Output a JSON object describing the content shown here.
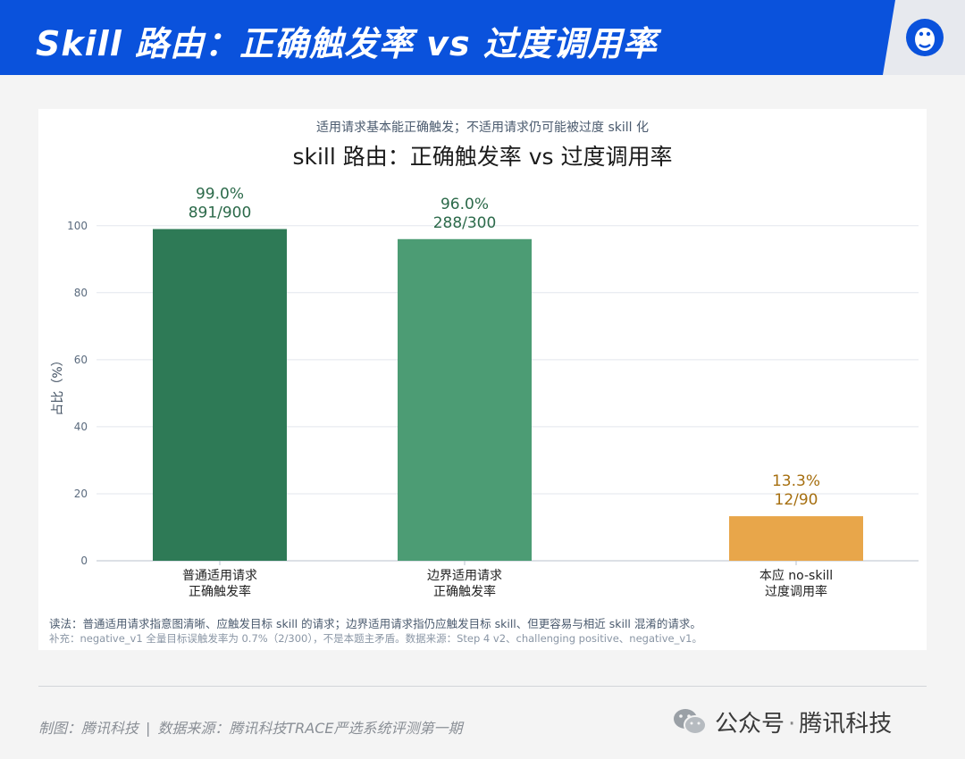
{
  "header": {
    "title": "Skill 路由：正确触发率 vs 过度调用率",
    "logo_icon": "tencent-penguin-logo"
  },
  "card": {
    "subtitle": "适用请求基本能正确触发；不适用请求仍可能被过度 skill 化",
    "title": "skill 路由：正确触发率 vs 过度调用率",
    "note": "读法：普通适用请求指意图清晰、应触发目标 skill 的请求；边界适用请求指仍应触发目标 skill、但更容易与相近 skill 混淆的请求。",
    "note2": "补充：negative_v1 全量目标误触发率为 0.7%（2/300），不是本题主矛盾。数据来源：Step 4 v2、challenging positive、negative_v1。"
  },
  "chart_data": {
    "type": "bar",
    "ylabel": "占比（%）",
    "ylim": [
      0,
      105
    ],
    "yticks": [
      0,
      20,
      40,
      60,
      80,
      100
    ],
    "grid": true,
    "categories": [
      [
        "普通适用请求",
        "正确触发率"
      ],
      [
        "边界适用请求",
        "正确触发率"
      ],
      [
        "本应 no-skill",
        "过度调用率"
      ]
    ],
    "values": [
      99.0,
      96.0,
      13.3
    ],
    "value_labels": [
      "99.0%",
      "96.0%",
      "13.3%"
    ],
    "count_labels": [
      "891/900",
      "288/300",
      "12/90"
    ],
    "colors": [
      "#2e7a56",
      "#4c9c74",
      "#e8a64a"
    ],
    "label_colors": [
      "#2c6a4a",
      "#2c6a4a",
      "#a66f10"
    ]
  },
  "footer": {
    "credit": "制图：腾讯科技",
    "source": "数据来源：腾讯科技TRACE严选系统评测第一期"
  },
  "wechat": {
    "icon": "wechat-icon",
    "label": "公众号",
    "dot": "·",
    "account": "腾讯科技"
  }
}
